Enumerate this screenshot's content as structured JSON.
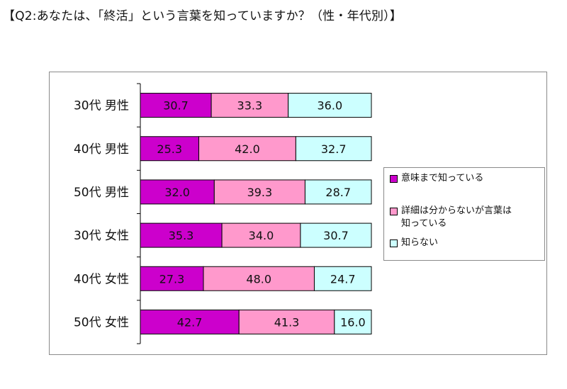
{
  "title": "【Q2:あなたは、「終活」という言葉を知っていますか？（性・年代別）】",
  "chart_data": {
    "type": "bar",
    "orientation": "horizontal",
    "stacked": true,
    "categories": [
      "30代 男性",
      "40代 男性",
      "50代 男性",
      "30代 女性",
      "40代 女性",
      "50代 女性"
    ],
    "series": [
      {
        "name": "意味まで知っている",
        "color": "#cc00cc",
        "values": [
          30.7,
          25.3,
          32.0,
          35.3,
          27.3,
          42.7
        ]
      },
      {
        "name": "詳細は分からないが言葉は\n知っている",
        "color": "#ff99cc",
        "values": [
          33.3,
          42.0,
          39.3,
          34.0,
          48.0,
          41.3
        ]
      },
      {
        "name": "知らない",
        "color": "#ccffff",
        "values": [
          36.0,
          32.7,
          28.7,
          30.7,
          24.7,
          16.0
        ]
      }
    ],
    "value_labels": true,
    "xlim": [
      0,
      100
    ],
    "grid": false,
    "legend_position": "right"
  }
}
